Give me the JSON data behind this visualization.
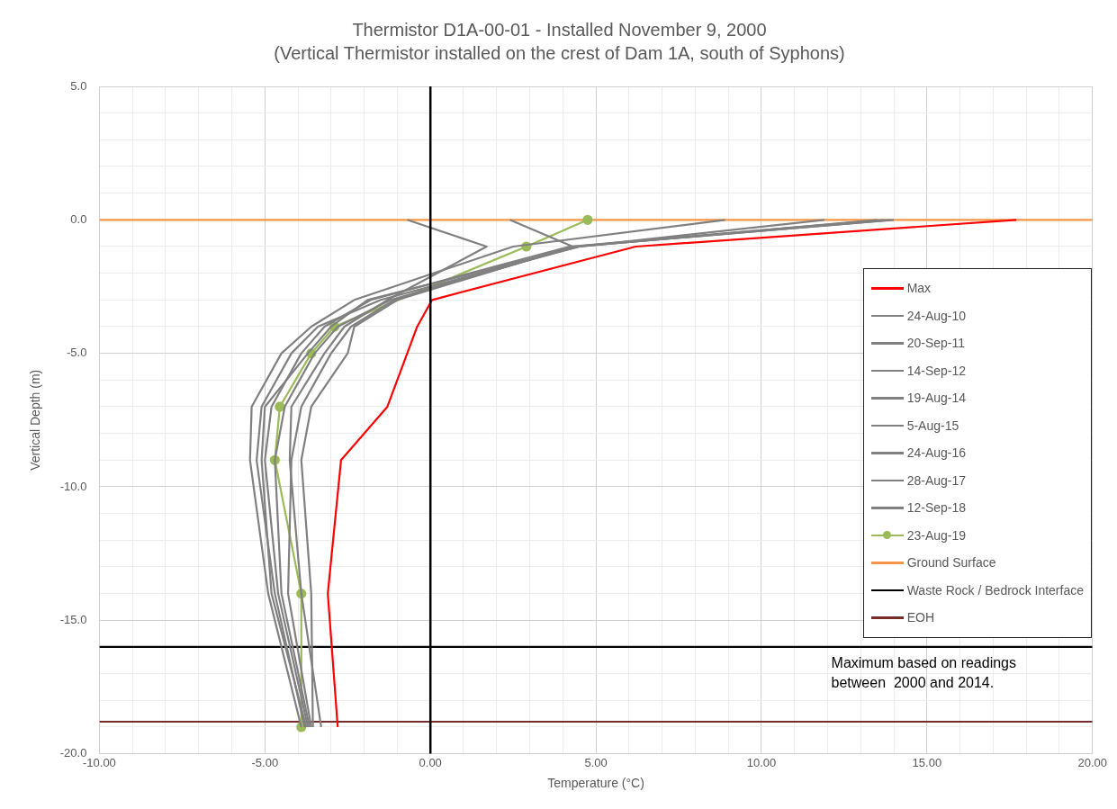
{
  "chart_data": {
    "type": "line",
    "title": "Thermistor D1A-00-01 - Installed November 9, 2000",
    "subtitle": "(Vertical Thermistor installed on the crest of Dam 1A, south of Syphons)",
    "xlabel": "Temperature (°C)",
    "ylabel": "Vertical Depth (m)",
    "xlim": [
      -10,
      20
    ],
    "ylim": [
      -20,
      5
    ],
    "xticks": [
      {
        "value": -10,
        "label": "-10.00"
      },
      {
        "value": -9,
        "label": null
      },
      {
        "value": -8,
        "label": null
      },
      {
        "value": -7,
        "label": null
      },
      {
        "value": -6,
        "label": null
      },
      {
        "value": -5,
        "label": "-5.00"
      },
      {
        "value": -4,
        "label": null
      },
      {
        "value": -3,
        "label": null
      },
      {
        "value": -2,
        "label": null
      },
      {
        "value": -1,
        "label": null
      },
      {
        "value": 0,
        "label": "0.00"
      },
      {
        "value": 1,
        "label": null
      },
      {
        "value": 2,
        "label": null
      },
      {
        "value": 3,
        "label": null
      },
      {
        "value": 4,
        "label": null
      },
      {
        "value": 5,
        "label": "5.00"
      },
      {
        "value": 6,
        "label": null
      },
      {
        "value": 7,
        "label": null
      },
      {
        "value": 8,
        "label": null
      },
      {
        "value": 9,
        "label": null
      },
      {
        "value": 10,
        "label": "10.00"
      },
      {
        "value": 11,
        "label": null
      },
      {
        "value": 12,
        "label": null
      },
      {
        "value": 13,
        "label": null
      },
      {
        "value": 14,
        "label": null
      },
      {
        "value": 15,
        "label": "15.00"
      },
      {
        "value": 16,
        "label": null
      },
      {
        "value": 17,
        "label": null
      },
      {
        "value": 18,
        "label": null
      },
      {
        "value": 19,
        "label": null
      },
      {
        "value": 20,
        "label": "20.00"
      }
    ],
    "yticks": [
      {
        "value": 5,
        "label": "5.0"
      },
      {
        "value": 4,
        "label": null
      },
      {
        "value": 3,
        "label": null
      },
      {
        "value": 2,
        "label": null
      },
      {
        "value": 1,
        "label": null
      },
      {
        "value": 0,
        "label": "0.0"
      },
      {
        "value": -1,
        "label": null
      },
      {
        "value": -2,
        "label": null
      },
      {
        "value": -3,
        "label": null
      },
      {
        "value": -4,
        "label": null
      },
      {
        "value": -5,
        "label": "-5.0"
      },
      {
        "value": -6,
        "label": null
      },
      {
        "value": -7,
        "label": null
      },
      {
        "value": -8,
        "label": null
      },
      {
        "value": -9,
        "label": null
      },
      {
        "value": -10,
        "label": "-10.0"
      },
      {
        "value": -11,
        "label": null
      },
      {
        "value": -12,
        "label": null
      },
      {
        "value": -13,
        "label": null
      },
      {
        "value": -14,
        "label": null
      },
      {
        "value": -15,
        "label": "-15.0"
      },
      {
        "value": -16,
        "label": null
      },
      {
        "value": -17,
        "label": null
      },
      {
        "value": -18,
        "label": null
      },
      {
        "value": -19,
        "label": null
      },
      {
        "value": -20,
        "label": "-20.0"
      }
    ],
    "grid": true,
    "legend": "right",
    "marker": "none",
    "ref_lines": [
      {
        "axis": "x",
        "value": 0,
        "color": "#000000"
      }
    ],
    "annotations": [
      "Maximum based on readings between  2000 and 2014."
    ],
    "series": [
      {
        "name": "Max",
        "color": "#ff0000",
        "x": [
          17.7,
          6.2,
          0.05,
          -0.4,
          -0.7,
          -1.3,
          -2.7,
          -3.1,
          -2.8
        ],
        "values": [
          0,
          -1,
          -3,
          -4,
          -5,
          -7,
          -9,
          -14,
          -19
        ]
      },
      {
        "name": "24-Aug-10",
        "color": "#808080",
        "x": [
          -0.7,
          1.7,
          -1.3,
          -2.6,
          -3.2,
          -4.2,
          -4.25,
          -3.9,
          -3.3
        ],
        "values": [
          0,
          -1,
          -3,
          -4,
          -5,
          -7,
          -9,
          -14,
          -19
        ]
      },
      {
        "name": "20-Sep-11",
        "color": "#808080",
        "x": [
          2.4,
          4.3,
          -1.0,
          -2.3,
          -2.5,
          -3.6,
          -3.9,
          -3.6,
          -3.55
        ],
        "values": [
          0,
          -1,
          -3,
          -4,
          -5,
          -7,
          -9,
          -14,
          -19
        ]
      },
      {
        "name": "14-Sep-12",
        "color": "#808080",
        "x": [
          8.9,
          2.5,
          -2.3,
          -3.6,
          -4.5,
          -5.4,
          -5.45,
          -4.9,
          -3.9
        ],
        "values": [
          0,
          -1,
          -3,
          -4,
          -5,
          -7,
          -9,
          -14,
          -19
        ]
      },
      {
        "name": "19-Aug-14",
        "color": "#808080",
        "x": [
          11.9,
          4.5,
          -1.5,
          -3.4,
          -4.2,
          -5.1,
          -5.25,
          -4.7,
          -3.8
        ],
        "values": [
          0,
          -1,
          -3,
          -4,
          -5,
          -7,
          -9,
          -14,
          -19
        ]
      },
      {
        "name": "5-Aug-15",
        "color": "#808080",
        "x": [
          13.7,
          4.2,
          -1.8,
          -3.2,
          -3.9,
          -4.8,
          -5.0,
          -4.6,
          -3.7
        ],
        "values": [
          0,
          -1,
          -3,
          -4,
          -5,
          -7,
          -9,
          -14,
          -19
        ]
      },
      {
        "name": "24-Aug-16",
        "color": "#808080",
        "x": [
          13.9,
          4.4,
          -1.2,
          -2.8,
          -3.5,
          -4.4,
          -4.7,
          -4.5,
          -3.65
        ],
        "values": [
          0,
          -1,
          -3,
          -4,
          -5,
          -7,
          -9,
          -14,
          -19
        ]
      },
      {
        "name": "28-Aug-17",
        "color": "#808080",
        "x": [
          13.5,
          4.5,
          -1.9,
          -3.0,
          -3.7,
          -5.0,
          -5.1,
          -4.8,
          -3.75
        ],
        "values": [
          0,
          -1,
          -3,
          -4,
          -5,
          -7,
          -9,
          -14,
          -19
        ]
      },
      {
        "name": "12-Sep-18",
        "color": "#808080",
        "x": [
          14.0,
          4.3,
          -1.1,
          -2.4,
          -3.0,
          -3.9,
          -4.2,
          -4.3,
          -3.6
        ],
        "values": [
          0,
          -1,
          -3,
          -4,
          -5,
          -7,
          -9,
          -14,
          -19
        ]
      },
      {
        "name": "23-Aug-19",
        "color": "#9bbb59",
        "marker": "circle",
        "x": [
          4.75,
          2.9,
          -2.9,
          -3.6,
          -4.55,
          -4.7,
          -3.9,
          -3.9
        ],
        "values": [
          0,
          -1,
          -4,
          -5,
          -7,
          -9,
          -14,
          -19
        ]
      },
      {
        "name": "Ground Surface",
        "color": "#f79646",
        "x": [
          -10,
          20
        ],
        "values": [
          0,
          0
        ]
      },
      {
        "name": "Waste Rock / Bedrock Interface",
        "color": "#000000",
        "x": [
          -10,
          20
        ],
        "values": [
          -16,
          -16
        ]
      },
      {
        "name": "EOH",
        "color": "#772c2a",
        "x": [
          -10,
          20
        ],
        "values": [
          -18.8,
          -18.8
        ]
      }
    ]
  }
}
